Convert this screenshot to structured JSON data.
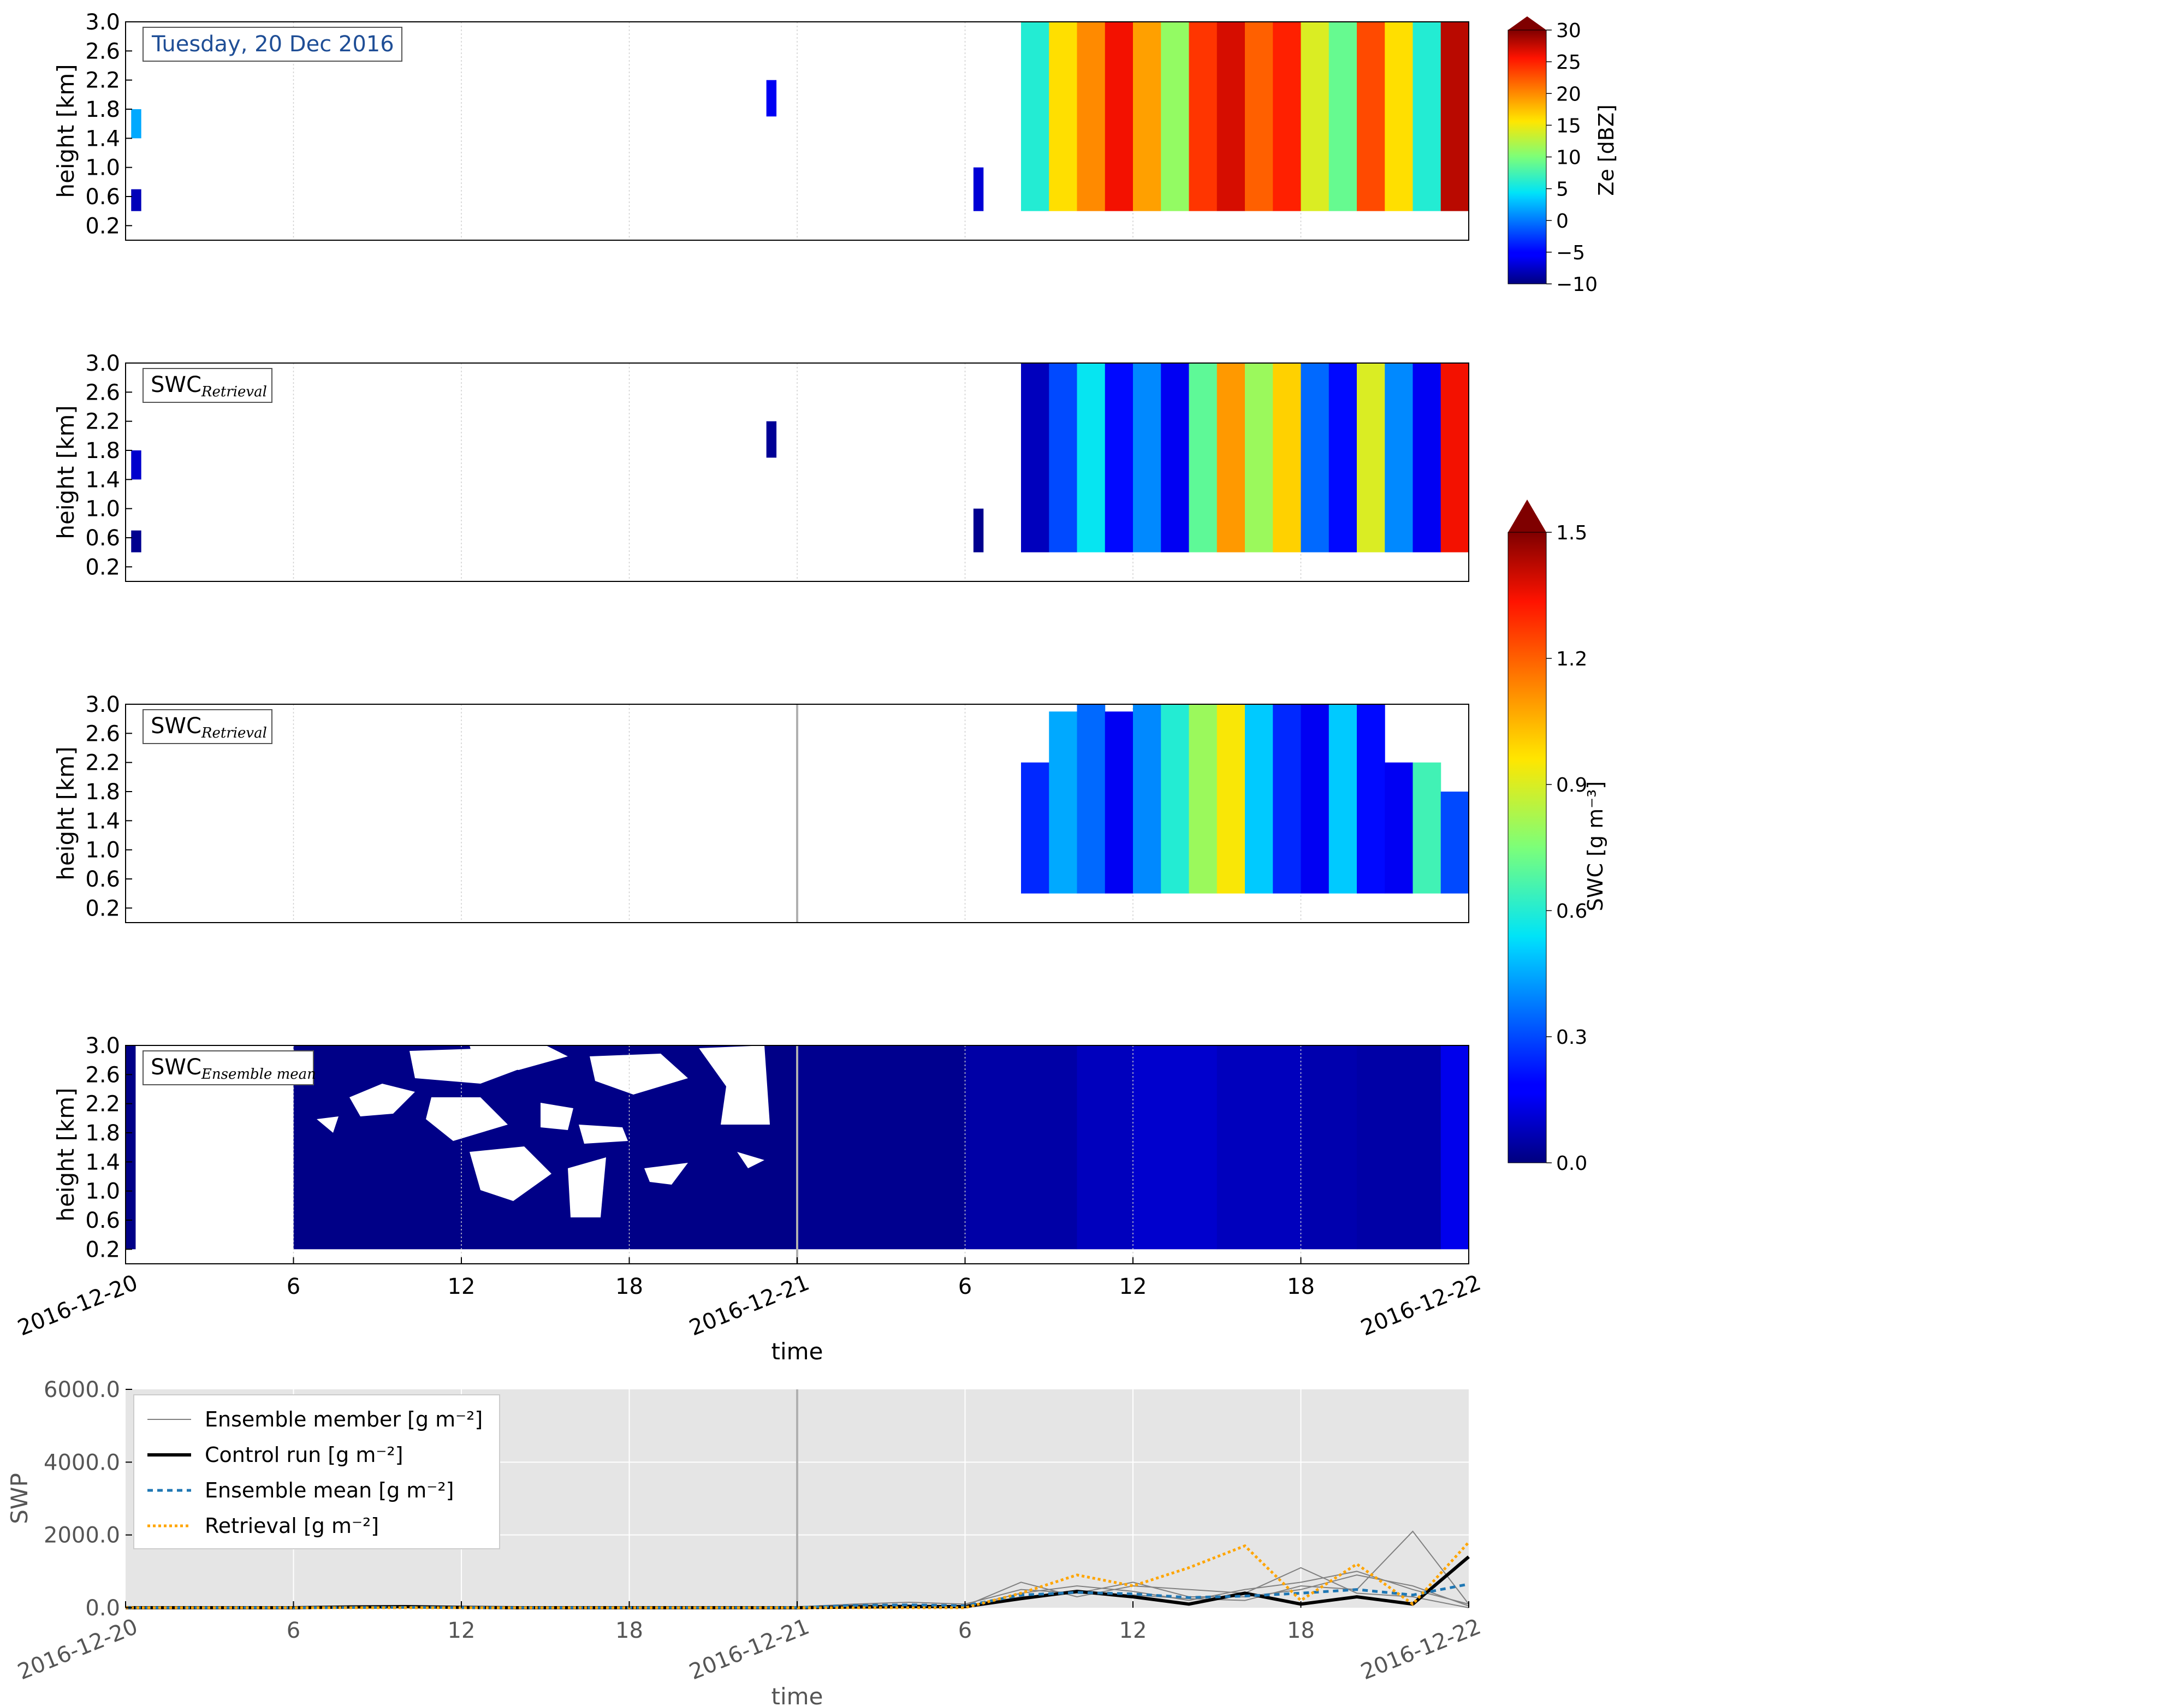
{
  "chart_data": [
    {
      "type": "heatmap",
      "panel": "radar-reflectivity",
      "annotation": "Tuesday, 20 Dec 2016",
      "ylabel": "height [km]",
      "yticks": [
        "0.2",
        "0.6",
        "1.0",
        "1.4",
        "1.8",
        "2.2",
        "2.6",
        "3.0"
      ],
      "ylim": [
        0.0,
        3.0
      ],
      "xlim": [
        "2016-12-20 00:00",
        "2016-12-22 00:00"
      ],
      "colorbar": {
        "label": "Ze [dBZ]",
        "ticks": [
          "30",
          "25",
          "20",
          "15",
          "10",
          "5",
          "0",
          "−5",
          "−10"
        ],
        "range": [
          -10,
          30
        ]
      },
      "cells": [
        {
          "t": 0.2,
          "z0": 0.4,
          "z1": 0.7,
          "v": -8
        },
        {
          "t": 0.2,
          "z0": 1.4,
          "z1": 1.8,
          "v": 2
        },
        {
          "t": 22.9,
          "z0": 1.7,
          "z1": 2.2,
          "v": -6
        },
        {
          "t": 30.3,
          "z0": 0.4,
          "z1": 1.0,
          "v": -7
        },
        {
          "t": 32,
          "z0": 0.4,
          "z1": 3.0,
          "v": 6
        },
        {
          "t": 33,
          "z0": 0.4,
          "z1": 3.0,
          "v": 16
        },
        {
          "t": 34,
          "z0": 0.4,
          "z1": 3.0,
          "v": 20
        },
        {
          "t": 35,
          "z0": 0.4,
          "z1": 3.0,
          "v": 26
        },
        {
          "t": 36,
          "z0": 0.4,
          "z1": 3.0,
          "v": 19
        },
        {
          "t": 37,
          "z0": 0.4,
          "z1": 3.0,
          "v": 11
        },
        {
          "t": 38,
          "z0": 0.4,
          "z1": 3.0,
          "v": 24
        },
        {
          "t": 39,
          "z0": 0.4,
          "z1": 3.0,
          "v": 27
        },
        {
          "t": 40,
          "z0": 0.4,
          "z1": 3.0,
          "v": 22
        },
        {
          "t": 41,
          "z0": 0.4,
          "z1": 3.0,
          "v": 25
        },
        {
          "t": 42,
          "z0": 0.4,
          "z1": 3.0,
          "v": 14
        },
        {
          "t": 43,
          "z0": 0.4,
          "z1": 3.0,
          "v": 9
        },
        {
          "t": 44,
          "z0": 0.4,
          "z1": 3.0,
          "v": 23
        },
        {
          "t": 45,
          "z0": 0.4,
          "z1": 3.0,
          "v": 16
        },
        {
          "t": 46,
          "z0": 0.4,
          "z1": 3.0,
          "v": 6
        },
        {
          "t": 47,
          "z0": 0.4,
          "z1": 3.0,
          "v": 28
        }
      ]
    },
    {
      "type": "heatmap",
      "panel": "swc-retrieval",
      "annotation": "SWC",
      "annotation_sub": "Retrieval",
      "ylabel": "height [km]",
      "yticks": [
        "0.2",
        "0.6",
        "1.0",
        "1.4",
        "1.8",
        "2.2",
        "2.6",
        "3.0"
      ],
      "ylim": [
        0.0,
        3.0
      ],
      "xlim": [
        "2016-12-20 00:00",
        "2016-12-22 00:00"
      ],
      "cells": [
        {
          "t": 0.2,
          "z0": 0.4,
          "z1": 0.7,
          "v": 0.02
        },
        {
          "t": 0.2,
          "z0": 1.4,
          "z1": 1.8,
          "v": 0.1
        },
        {
          "t": 22.9,
          "z0": 1.7,
          "z1": 2.2,
          "v": 0.03
        },
        {
          "t": 30.3,
          "z0": 0.4,
          "z1": 1.0,
          "v": 0.02
        },
        {
          "t": 32,
          "z0": 0.4,
          "z1": 3.0,
          "v": 0.08
        },
        {
          "t": 33,
          "z0": 0.4,
          "z1": 3.0,
          "v": 0.3
        },
        {
          "t": 34,
          "z0": 0.4,
          "z1": 3.0,
          "v": 0.55
        },
        {
          "t": 35,
          "z0": 0.4,
          "z1": 3.0,
          "v": 0.2
        },
        {
          "t": 36,
          "z0": 0.4,
          "z1": 3.0,
          "v": 0.4
        },
        {
          "t": 37,
          "z0": 0.4,
          "z1": 3.0,
          "v": 0.15
        },
        {
          "t": 38,
          "z0": 0.4,
          "z1": 3.0,
          "v": 0.7
        },
        {
          "t": 39,
          "z0": 0.4,
          "z1": 3.0,
          "v": 1.1
        },
        {
          "t": 40,
          "z0": 0.4,
          "z1": 3.0,
          "v": 0.8
        },
        {
          "t": 41,
          "z0": 0.4,
          "z1": 3.0,
          "v": 1.0
        },
        {
          "t": 42,
          "z0": 0.4,
          "z1": 3.0,
          "v": 0.35
        },
        {
          "t": 43,
          "z0": 0.4,
          "z1": 3.0,
          "v": 0.2
        },
        {
          "t": 44,
          "z0": 0.4,
          "z1": 3.0,
          "v": 0.9
        },
        {
          "t": 45,
          "z0": 0.4,
          "z1": 3.0,
          "v": 0.4
        },
        {
          "t": 46,
          "z0": 0.4,
          "z1": 3.0,
          "v": 0.15
        },
        {
          "t": 47,
          "z0": 0.4,
          "z1": 3.0,
          "v": 1.35
        }
      ]
    },
    {
      "type": "heatmap",
      "panel": "swc-control",
      "annotation": "SWC",
      "annotation_sub": "Retrieval",
      "ylabel": "height [km]",
      "yticks": [
        "0.2",
        "0.6",
        "1.0",
        "1.4",
        "1.8",
        "2.2",
        "2.6",
        "3.0"
      ],
      "ylim": [
        0.0,
        3.0
      ],
      "xlim": [
        "2016-12-20 00:00",
        "2016-12-22 00:00"
      ],
      "cells": [
        {
          "t": 32,
          "z0": 0.4,
          "z1": 2.2,
          "v": 0.25
        },
        {
          "t": 33,
          "z0": 0.4,
          "z1": 2.9,
          "v": 0.45
        },
        {
          "t": 34,
          "z0": 0.4,
          "z1": 3.0,
          "v": 0.35
        },
        {
          "t": 35,
          "z0": 0.4,
          "z1": 2.9,
          "v": 0.15
        },
        {
          "t": 36,
          "z0": 0.4,
          "z1": 3.0,
          "v": 0.4
        },
        {
          "t": 37,
          "z0": 0.4,
          "z1": 3.0,
          "v": 0.6
        },
        {
          "t": 38,
          "z0": 0.4,
          "z1": 3.0,
          "v": 0.8
        },
        {
          "t": 39,
          "z0": 0.4,
          "z1": 3.0,
          "v": 0.95
        },
        {
          "t": 40,
          "z0": 0.4,
          "z1": 3.0,
          "v": 0.5
        },
        {
          "t": 41,
          "z0": 0.4,
          "z1": 3.0,
          "v": 0.25
        },
        {
          "t": 42,
          "z0": 0.4,
          "z1": 3.0,
          "v": 0.15
        },
        {
          "t": 43,
          "z0": 0.4,
          "z1": 3.0,
          "v": 0.5
        },
        {
          "t": 44,
          "z0": 0.4,
          "z1": 3.0,
          "v": 0.2
        },
        {
          "t": 45,
          "z0": 0.4,
          "z1": 2.2,
          "v": 0.15
        },
        {
          "t": 46,
          "z0": 0.4,
          "z1": 2.2,
          "v": 0.65
        },
        {
          "t": 47,
          "z0": 0.4,
          "z1": 1.8,
          "v": 0.3
        }
      ]
    },
    {
      "type": "heatmap",
      "panel": "swc-ensemble-mean",
      "annotation": "SWC",
      "annotation_sub": "Ensemble mean",
      "xlabel": "time",
      "ylabel": "height [km]",
      "yticks": [
        "0.2",
        "0.6",
        "1.0",
        "1.4",
        "1.8",
        "2.2",
        "2.6",
        "3.0"
      ],
      "ylim": [
        0.0,
        3.0
      ],
      "xlim": [
        "2016-12-20 00:00",
        "2016-12-22 00:00"
      ],
      "xticks": [
        "2016-12-20",
        "6",
        "12",
        "18",
        "2016-12-21",
        "6",
        "12",
        "18",
        "2016-12-22"
      ],
      "colorbar": {
        "label": "SWC [g m⁻³]",
        "ticks": [
          "1.5",
          "1.2",
          "0.9",
          "0.6",
          "0.3",
          "0.0"
        ],
        "range": [
          0.0,
          1.5
        ]
      },
      "cells": [
        {
          "t": 0,
          "z0": 0.2,
          "z1": 3.0,
          "v": 0.01
        },
        {
          "t": 6,
          "z0": 0.2,
          "z1": 3.0,
          "v": 0.01
        },
        {
          "t": 12,
          "z0": 0.2,
          "z1": 3.0,
          "v": 0.01
        },
        {
          "t": 18,
          "z0": 0.2,
          "z1": 3.0,
          "v": 0.01
        },
        {
          "t": 24,
          "z0": 0.2,
          "z1": 3.0,
          "v": 0.02
        },
        {
          "t": 30,
          "z0": 0.2,
          "z1": 3.0,
          "v": 0.05
        },
        {
          "t": 34,
          "z0": 0.2,
          "z1": 3.0,
          "v": 0.08
        },
        {
          "t": 36,
          "z0": 0.2,
          "z1": 3.0,
          "v": 0.1
        },
        {
          "t": 39,
          "z0": 0.2,
          "z1": 3.0,
          "v": 0.08
        },
        {
          "t": 42,
          "z0": 0.2,
          "z1": 3.0,
          "v": 0.06
        },
        {
          "t": 44,
          "z0": 0.2,
          "z1": 3.0,
          "v": 0.05
        },
        {
          "t": 47,
          "z0": 0.2,
          "z1": 3.0,
          "v": 0.14
        }
      ]
    },
    {
      "type": "line",
      "panel": "swp",
      "xlabel": "time",
      "ylabel": "SWP",
      "yticks": [
        "0.0",
        "2000.0",
        "4000.0",
        "6000.0"
      ],
      "ylim": [
        0,
        6000
      ],
      "xlim": [
        "2016-12-20 00:00",
        "2016-12-22 00:00"
      ],
      "xticks": [
        "2016-12-20",
        "6",
        "12",
        "18",
        "2016-12-21",
        "6",
        "12",
        "18",
        "2016-12-22"
      ],
      "x": [
        0,
        2,
        4,
        6,
        8,
        10,
        12,
        14,
        16,
        18,
        20,
        22,
        24,
        26,
        28,
        30,
        32,
        34,
        36,
        38,
        40,
        42,
        44,
        46,
        48
      ],
      "legend": "top-left",
      "series": [
        {
          "name": "Ensemble member [g m⁻²]",
          "color": "#808080",
          "members": [
            [
              0,
              0,
              0,
              0,
              10,
              20,
              10,
              0,
              0,
              0,
              0,
              0,
              0,
              80,
              60,
              40,
              300,
              400,
              350,
              250,
              200,
              600,
              500,
              2100,
              100
            ],
            [
              0,
              0,
              0,
              0,
              0,
              0,
              0,
              0,
              0,
              0,
              0,
              0,
              20,
              100,
              150,
              100,
              500,
              400,
              700,
              300,
              300,
              500,
              900,
              600,
              50
            ],
            [
              0,
              0,
              0,
              0,
              0,
              0,
              0,
              0,
              0,
              0,
              0,
              0,
              0,
              50,
              80,
              50,
              700,
              300,
              600,
              500,
              400,
              1100,
              400,
              300,
              0
            ],
            [
              0,
              0,
              0,
              0,
              0,
              0,
              0,
              0,
              0,
              0,
              0,
              0,
              0,
              30,
              60,
              20,
              400,
              600,
              450,
              200,
              500,
              700,
              1000,
              500,
              100
            ]
          ]
        },
        {
          "name": "Control run [g m⁻²]",
          "color": "#000000",
          "values": [
            0,
            0,
            0,
            0,
            20,
            30,
            10,
            0,
            0,
            0,
            0,
            0,
            0,
            20,
            30,
            30,
            250,
            450,
            300,
            100,
            400,
            100,
            300,
            100,
            1400
          ]
        },
        {
          "name": "Ensemble mean [g m⁻²]",
          "color": "#1f77b4",
          "values": [
            0,
            0,
            0,
            0,
            5,
            10,
            5,
            0,
            0,
            0,
            0,
            0,
            5,
            60,
            80,
            50,
            350,
            420,
            380,
            280,
            320,
            400,
            500,
            350,
            650
          ]
        },
        {
          "name": "Retrieval [g m⁻²]",
          "color": "#ffa500",
          "values": [
            0,
            0,
            0,
            0,
            0,
            0,
            0,
            0,
            0,
            0,
            0,
            0,
            0,
            0,
            0,
            0,
            400,
            900,
            600,
            1100,
            1700,
            200,
            1200,
            100,
            1800
          ]
        }
      ]
    }
  ]
}
